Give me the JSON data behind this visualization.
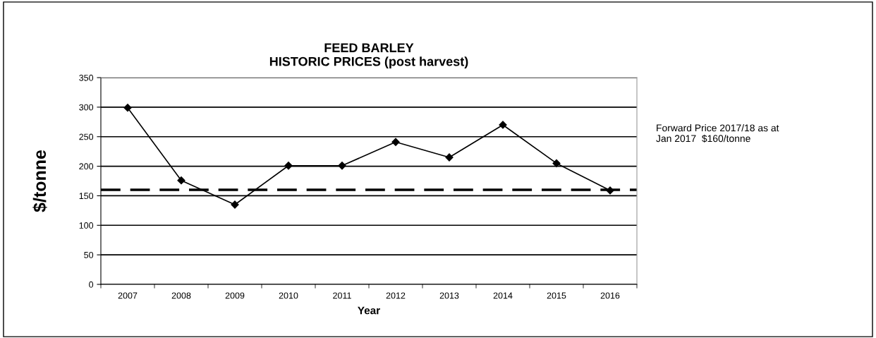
{
  "chart_data": {
    "type": "line",
    "title": "FEED BARLEY\nHISTORIC PRICES (post harvest)",
    "xlabel": "Year",
    "ylabel": "$/tonne",
    "categories": [
      "2007",
      "2008",
      "2009",
      "2010",
      "2011",
      "2012",
      "2013",
      "2014",
      "2015",
      "2016"
    ],
    "series": [
      {
        "color": "#000000",
        "values": [
          299,
          176,
          135,
          201,
          201,
          241,
          215,
          270,
          205,
          159
        ]
      }
    ],
    "marker": "diamond",
    "line_style": "solid",
    "ylim": [
      0,
      350
    ],
    "yticks": [
      0,
      50,
      100,
      150,
      200,
      250,
      300,
      350
    ],
    "grid": "y",
    "ref_lines": [
      {
        "axis": "y",
        "value": 160,
        "label": "Forward Price 2017/18 as at\nJan 2017  $160/tonne",
        "color": "#000000",
        "line_style": "dashed"
      }
    ]
  }
}
